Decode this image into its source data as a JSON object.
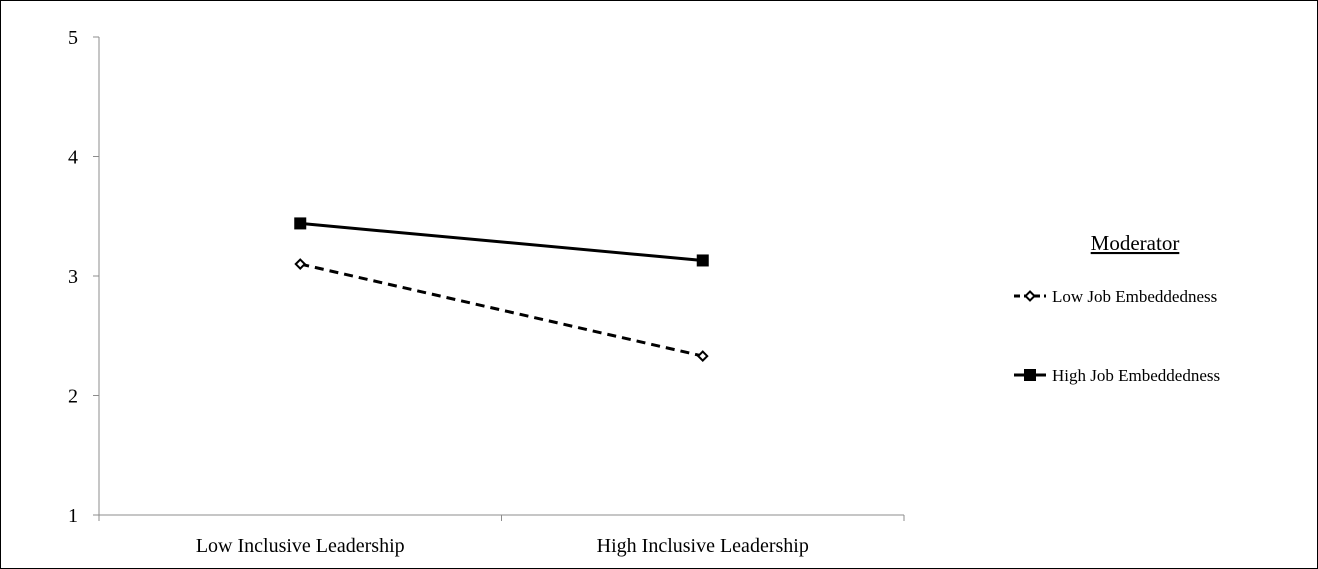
{
  "chart_data": {
    "type": "line",
    "categories": [
      "Low Inclusive Leadership",
      "High Inclusive Leadership"
    ],
    "ylim": [
      1,
      5
    ],
    "yticks": [
      1,
      2,
      3,
      4,
      5
    ],
    "ytick_labels": [
      "1",
      "2",
      "3",
      "4",
      "5"
    ],
    "grid": false,
    "legend": {
      "title": "Moderator",
      "placement": "right"
    },
    "series": [
      {
        "name": "Low Job Embeddedness",
        "values": [
          3.1,
          2.33
        ],
        "style": "dashed",
        "marker": "diamond-open",
        "color": "#000000"
      },
      {
        "name": "High Job Embeddedness",
        "values": [
          3.44,
          3.13
        ],
        "style": "solid",
        "marker": "square-filled",
        "color": "#000000"
      }
    ]
  }
}
